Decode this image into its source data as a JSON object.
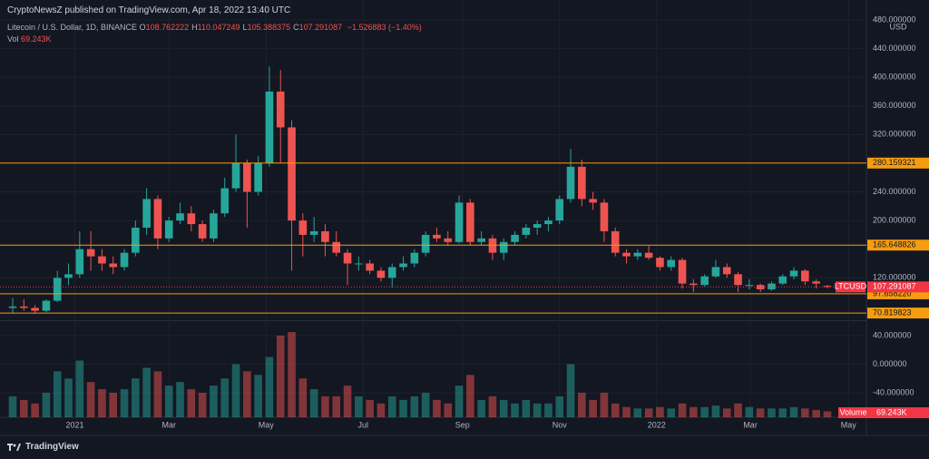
{
  "header": {
    "title": "CryptoNewsZ published on TradingView.com, Apr 18, 2022 13:40 UTC"
  },
  "legend": {
    "symbol": "Litecoin / U.S. Dollar, 1D, BINANCE",
    "ohlc": [
      {
        "key": "O",
        "value": "108.762222"
      },
      {
        "key": "H",
        "value": "110.047249"
      },
      {
        "key": "L",
        "value": "105.388375"
      },
      {
        "key": "C",
        "value": "107.291087"
      }
    ],
    "change": "−1.526883 (−1.40%)",
    "volume_key": "Vol",
    "volume_value": "69.243K"
  },
  "chart_data": {
    "type": "candlestick",
    "currency": "USD",
    "open": [
      78,
      80,
      78,
      74,
      88,
      120,
      125,
      160,
      150,
      140,
      135,
      155,
      190,
      230,
      175,
      200,
      210,
      195,
      175,
      210,
      245,
      280,
      240,
      280,
      380,
      330,
      200,
      180,
      185,
      170,
      155,
      140,
      140,
      130,
      120,
      135,
      140,
      155,
      180,
      175,
      170,
      225,
      170,
      175,
      155,
      170,
      180,
      190,
      195,
      200,
      230,
      275,
      230,
      225,
      185,
      155,
      150,
      155,
      148,
      135,
      145,
      112,
      110,
      122,
      135,
      125,
      110,
      110,
      104,
      112,
      122,
      130,
      115,
      108.762222
    ],
    "high": [
      92,
      90,
      82,
      90,
      130,
      140,
      185,
      185,
      160,
      150,
      160,
      200,
      245,
      235,
      205,
      225,
      220,
      200,
      215,
      260,
      320,
      285,
      290,
      415,
      410,
      340,
      210,
      205,
      195,
      185,
      160,
      150,
      145,
      135,
      140,
      150,
      160,
      185,
      190,
      185,
      235,
      230,
      185,
      180,
      175,
      185,
      195,
      200,
      205,
      235,
      300,
      285,
      240,
      230,
      190,
      160,
      160,
      165,
      150,
      150,
      148,
      118,
      125,
      145,
      140,
      128,
      118,
      112,
      115,
      125,
      135,
      132,
      118,
      110.047249
    ],
    "low": [
      70,
      74,
      70,
      72,
      86,
      110,
      120,
      130,
      130,
      125,
      130,
      150,
      180,
      160,
      170,
      195,
      185,
      170,
      170,
      205,
      240,
      190,
      235,
      275,
      280,
      130,
      150,
      170,
      150,
      150,
      110,
      130,
      125,
      115,
      106,
      130,
      135,
      150,
      170,
      165,
      168,
      165,
      165,
      145,
      145,
      165,
      175,
      180,
      185,
      195,
      225,
      220,
      215,
      170,
      150,
      140,
      145,
      145,
      130,
      130,
      105,
      100,
      108,
      120,
      120,
      100,
      104,
      100,
      102,
      110,
      118,
      110,
      105,
      105.388375
    ],
    "close": [
      80,
      78,
      74,
      88,
      120,
      125,
      160,
      150,
      140,
      135,
      155,
      190,
      230,
      175,
      200,
      210,
      195,
      175,
      210,
      245,
      280,
      240,
      280,
      380,
      330,
      200,
      180,
      185,
      170,
      155,
      140,
      140,
      130,
      120,
      135,
      140,
      155,
      180,
      175,
      170,
      225,
      170,
      175,
      155,
      170,
      180,
      190,
      195,
      200,
      230,
      275,
      230,
      225,
      185,
      155,
      150,
      155,
      148,
      135,
      145,
      112,
      110,
      122,
      135,
      125,
      110,
      110,
      104,
      112,
      122,
      130,
      115,
      112,
      107.291087
    ],
    "up_color": "#26a69a",
    "down_color": "#ef5350",
    "grid": true,
    "xlim": [
      -0.49,
      76.5
    ],
    "xticks": [
      {
        "value": 5.57,
        "label": "2021"
      },
      {
        "value": 14,
        "label": "Mar"
      },
      {
        "value": 22.7,
        "label": "May"
      },
      {
        "value": 31.4,
        "label": "Jul"
      },
      {
        "value": 40.3,
        "label": "Sep"
      },
      {
        "value": 49,
        "label": "Nov"
      },
      {
        "value": 57.7,
        "label": "2022"
      },
      {
        "value": 66.1,
        "label": "Mar"
      },
      {
        "value": 74.9,
        "label": "May"
      }
    ],
    "ylim": [
      62.1,
      497.7
    ],
    "yticks": [
      {
        "value": 480,
        "label": "480.000000"
      },
      {
        "value": 440,
        "label": "440.000000"
      },
      {
        "value": 400,
        "label": "400.000000"
      },
      {
        "value": 360,
        "label": "360.000000"
      },
      {
        "value": 320,
        "label": "320.000000"
      },
      {
        "value": 240,
        "label": "240.000000"
      },
      {
        "value": 200,
        "label": "200.000000"
      },
      {
        "value": 120,
        "label": "120.000000"
      }
    ],
    "price_lines": [
      {
        "value": 280.159321,
        "label": "280.159321",
        "color": "#f59d0f"
      },
      {
        "value": 165.648826,
        "label": "165.648826",
        "color": "#f59d0f"
      },
      {
        "value": 97.65822,
        "label": "97.658220",
        "color": "#f59d0f"
      },
      {
        "value": 70.819823,
        "label": "70.819823",
        "color": "#f59d0f"
      }
    ],
    "last_price": {
      "name": "LTCUSD",
      "value": 107.291087,
      "label": "107.291087",
      "color": "#f23645"
    },
    "volume": {
      "name": "Volume",
      "value_label": "69.243K",
      "color": "#f23645",
      "values": [
        -45,
        -50,
        -55,
        -40,
        -10,
        -20,
        5,
        -25,
        -35,
        -40,
        -35,
        -20,
        -5,
        -10,
        -30,
        -25,
        -35,
        -40,
        -30,
        -20,
        0,
        -10,
        -15,
        10,
        40,
        45,
        -20,
        -35,
        -45,
        -45,
        -30,
        -45,
        -50,
        -55,
        -45,
        -50,
        -45,
        -40,
        -50,
        -55,
        -30,
        -15,
        -50,
        -45,
        -50,
        -55,
        -50,
        -55,
        -55,
        -45,
        0,
        -40,
        -50,
        -40,
        -55,
        -60,
        -62,
        -62,
        -60,
        -62,
        -55,
        -60,
        -60,
        -58,
        -62,
        -55,
        -60,
        -62,
        -62,
        -62,
        -60,
        -62,
        -64,
        -66
      ],
      "ylim": [
        -74.3,
        59
      ],
      "yticks": [
        {
          "value": 40,
          "label": "40.000000"
        },
        {
          "value": 0,
          "label": "0.000000"
        },
        {
          "value": -40,
          "label": "-40.000000"
        }
      ]
    }
  },
  "footer": {
    "brand": "TradingView"
  }
}
